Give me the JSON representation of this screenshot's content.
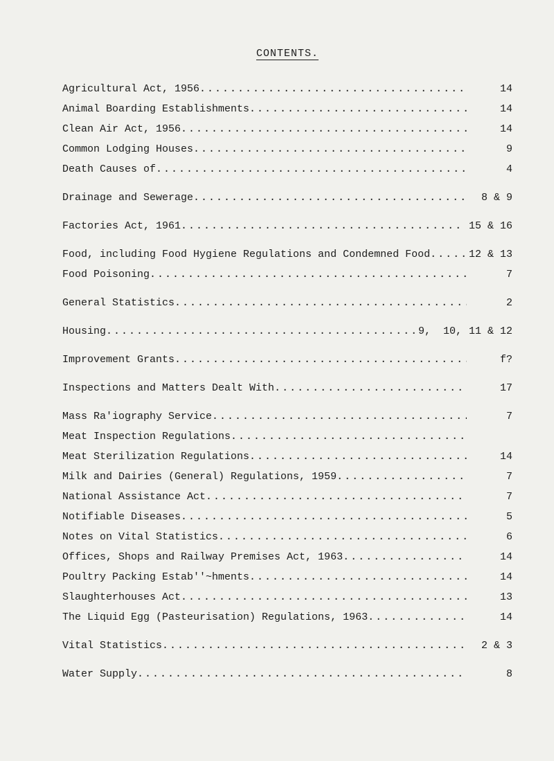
{
  "title": "CONTENTS.",
  "spacing_normal": 14,
  "spacing_large": 26,
  "entries": [
    {
      "label": "Agricultural Act, 1956",
      "page": "14",
      "gap_after": "n"
    },
    {
      "label": "Animal Boarding Establishments",
      "page": "14",
      "gap_after": "n"
    },
    {
      "label": "Clean Air Act, 1956",
      "page": "14",
      "gap_after": "n"
    },
    {
      "label": "Common Lodging Houses",
      "page": "9",
      "gap_after": "n"
    },
    {
      "label": "Death Causes of",
      "page": "4",
      "gap_after": "l"
    },
    {
      "label": "Drainage and Sewerage",
      "page": "8 & 9",
      "gap_after": "l"
    },
    {
      "label": "Factories Act, 1961",
      "page": "15 & 16",
      "gap_after": "l"
    },
    {
      "label": "Food, including Food Hygiene Regulations and Condemned Food",
      "page": "12 & 13",
      "gap_after": "n"
    },
    {
      "label": "Food Poisoning",
      "page": "7",
      "gap_after": "l"
    },
    {
      "label": "General Statistics",
      "page": "2",
      "gap_after": "l"
    },
    {
      "label": "Housing",
      "label_suffix": "9,  10,",
      "page": "11 & 12",
      "gap_after": "l"
    },
    {
      "label": "Improvement Grants",
      "page": "f?",
      "gap_after": "l"
    },
    {
      "label": "Inspections and Matters Dealt With",
      "page": "17",
      "gap_after": "l"
    },
    {
      "label": "Mass Ra'iography Service",
      "page": "7",
      "gap_after": "n"
    },
    {
      "label": "Meat Inspection Regulations",
      "page": "",
      "gap_after": "n"
    },
    {
      "label": "Meat Sterilization Regulations",
      "page": "14",
      "gap_after": "n"
    },
    {
      "label": "Milk and Dairies (General) Regulations, 1959",
      "page": "7",
      "gap_after": "n"
    },
    {
      "label": "National Assistance Act",
      "page": "7",
      "gap_after": "n"
    },
    {
      "label": "Notifiable Diseases",
      "page": "5",
      "gap_after": "n"
    },
    {
      "label": "Notes on Vital Statistics",
      "page": "6",
      "gap_after": "n"
    },
    {
      "label": "Offices, Shops and Railway Premises Act, 1963",
      "page": "14",
      "gap_after": "n"
    },
    {
      "label": "Poultry Packing Estab''~hments",
      "page": "14",
      "gap_after": "n"
    },
    {
      "label": "Slaughterhouses Act",
      "page": "13",
      "gap_after": "n"
    },
    {
      "label": "The Liquid Egg (Pasteurisation) Regulations, 1963",
      "page": "14",
      "gap_after": "l"
    },
    {
      "label": "Vital Statistics",
      "page": "2 & 3",
      "gap_after": "l"
    },
    {
      "label": "Water Supply",
      "page": "8",
      "gap_after": "n"
    }
  ]
}
